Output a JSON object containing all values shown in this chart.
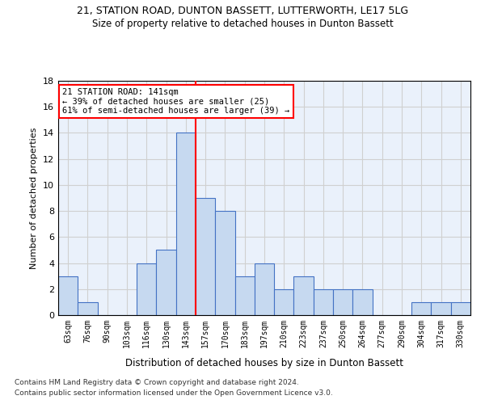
{
  "title": "21, STATION ROAD, DUNTON BASSETT, LUTTERWORTH, LE17 5LG",
  "subtitle": "Size of property relative to detached houses in Dunton Bassett",
  "xlabel": "Distribution of detached houses by size in Dunton Bassett",
  "ylabel": "Number of detached properties",
  "bin_labels": [
    "63sqm",
    "76sqm",
    "90sqm",
    "103sqm",
    "116sqm",
    "130sqm",
    "143sqm",
    "157sqm",
    "170sqm",
    "183sqm",
    "197sqm",
    "210sqm",
    "223sqm",
    "237sqm",
    "250sqm",
    "264sqm",
    "277sqm",
    "290sqm",
    "304sqm",
    "317sqm",
    "330sqm"
  ],
  "values": [
    3,
    1,
    0,
    0,
    4,
    5,
    14,
    9,
    8,
    3,
    4,
    2,
    3,
    2,
    2,
    2,
    0,
    0,
    1,
    1,
    1
  ],
  "bar_color": "#c6d9f0",
  "bar_edge_color": "#4472c4",
  "vline_x": 6.5,
  "vline_color": "red",
  "annotation_text": "21 STATION ROAD: 141sqm\n← 39% of detached houses are smaller (25)\n61% of semi-detached houses are larger (39) →",
  "annotation_box_color": "white",
  "annotation_box_edge": "red",
  "ylim": [
    0,
    18
  ],
  "yticks": [
    0,
    2,
    4,
    6,
    8,
    10,
    12,
    14,
    16,
    18
  ],
  "footer1": "Contains HM Land Registry data © Crown copyright and database right 2024.",
  "footer2": "Contains public sector information licensed under the Open Government Licence v3.0.",
  "grid_color": "#d0d0d0",
  "bg_color": "#eaf1fb"
}
